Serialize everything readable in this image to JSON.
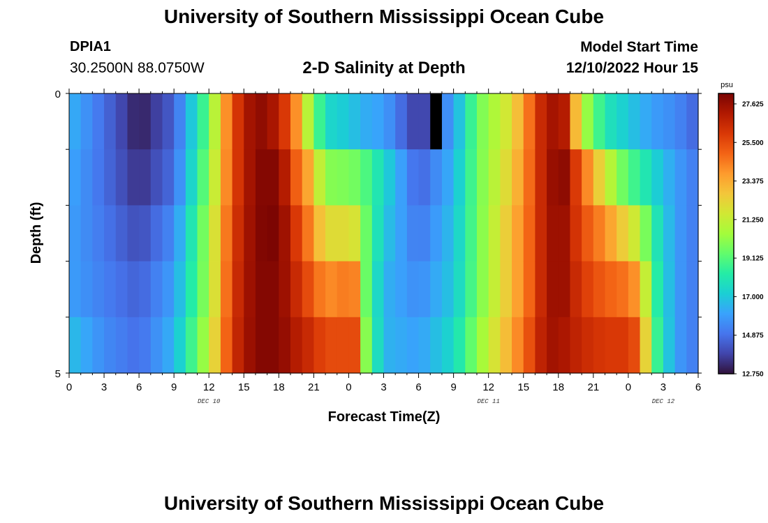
{
  "header": {
    "title": "University of Southern Mississippi Ocean Cube",
    "station_id": "DPIA1",
    "coords": "30.2500N  88.0750W",
    "chart_title": "2-D Salinity at Depth",
    "start_label": "Model Start Time",
    "start_value": "12/10/2022 Hour 15"
  },
  "footer": {
    "title": "University of Southern Mississippi Ocean Cube"
  },
  "colors": {
    "colormap": [
      "#30123b",
      "#4145ab",
      "#4675ed",
      "#39a2fc",
      "#1bcfd4",
      "#24eca6",
      "#61fc6c",
      "#a4fc3b",
      "#d1e834",
      "#f3c63a",
      "#fe9b2d",
      "#f36315",
      "#d93806",
      "#b11901",
      "#7a0402"
    ],
    "missing": "#000000"
  },
  "chart_data": {
    "type": "heatmap",
    "title": "2-D Salinity at Depth",
    "xlabel": "Forecast Time(Z)",
    "ylabel": "Depth (ft)",
    "x_tick_labels": [
      "0",
      "3",
      "6",
      "9",
      "12",
      "15",
      "18",
      "21",
      "0",
      "3",
      "6",
      "9",
      "12",
      "15",
      "18",
      "21",
      "0",
      "3",
      "6"
    ],
    "day_labels": [
      {
        "label": "DEC 10",
        "at_hour": 12
      },
      {
        "label": "DEC 11",
        "at_hour": 36
      },
      {
        "label": "DEC 12",
        "at_hour": 51
      }
    ],
    "xlim": [
      0,
      54
    ],
    "y_tick_labels": [
      "0",
      "5"
    ],
    "ylim": [
      0,
      5
    ],
    "units": "psu",
    "colorbar_ticks": [
      "27.625",
      "25.500",
      "23.375",
      "21.250",
      "19.125",
      "17.000",
      "14.875",
      "12.750"
    ],
    "vmin": 12.75,
    "vmax": 28.2,
    "layer_depths_ft": [
      0,
      1,
      2,
      3,
      4,
      5
    ],
    "keyframes": [
      {
        "hour": 0,
        "values": [
          16.5,
          16.2,
          16.0,
          16.0,
          16.8,
          17.5
        ]
      },
      {
        "hour": 3,
        "values": [
          14.8,
          14.8,
          15.0,
          15.2,
          15.5,
          15.6
        ]
      },
      {
        "hour": 6,
        "values": [
          13.0,
          13.4,
          14.0,
          14.5,
          14.8,
          15.0
        ]
      },
      {
        "hour": 9,
        "values": [
          14.5,
          14.8,
          15.5,
          16.0,
          16.5,
          16.5
        ]
      },
      {
        "hour": 12,
        "values": [
          19.5,
          20.0,
          20.5,
          20.5,
          21.0,
          21.5
        ]
      },
      {
        "hour": 14,
        "values": [
          25.5,
          25.5,
          25.8,
          26.0,
          26.2,
          26.5
        ]
      },
      {
        "hour": 16,
        "values": [
          28.0,
          28.0,
          28.0,
          28.0,
          28.0,
          28.0
        ]
      },
      {
        "hour": 18,
        "values": [
          27.0,
          28.0,
          28.2,
          28.0,
          28.0,
          28.0
        ]
      },
      {
        "hour": 19.5,
        "values": [
          24.0,
          25.0,
          26.0,
          26.5,
          27.0,
          27.2
        ]
      },
      {
        "hour": 20.5,
        "values": [
          21.0,
          23.5,
          24.5,
          25.5,
          26.5,
          27.0
        ]
      },
      {
        "hour": 22,
        "values": [
          17.5,
          20.0,
          22.0,
          24.0,
          25.5,
          26.5
        ]
      },
      {
        "hour": 24,
        "values": [
          17.0,
          19.8,
          22.0,
          24.5,
          25.5,
          26.5
        ]
      },
      {
        "hour": 25,
        "values": [
          16.5,
          19.5,
          21.5,
          24.0,
          25.5,
          26.0
        ]
      },
      {
        "hour": 25.5,
        "values": [
          16.3,
          19.0,
          19.5,
          19.5,
          20.0,
          20.0
        ]
      },
      {
        "hour": 27,
        "values": [
          16.0,
          17.5,
          17.0,
          16.5,
          16.5,
          16.0
        ]
      },
      {
        "hour": 30,
        "values": [
          13.5,
          14.5,
          15.0,
          15.5,
          16.0,
          16.3
        ]
      },
      {
        "hour": 33,
        "values": [
          16.0,
          16.5,
          16.8,
          17.0,
          17.5,
          18.0
        ]
      },
      {
        "hour": 35,
        "values": [
          19.5,
          19.5,
          19.5,
          19.5,
          20.0,
          20.0
        ]
      },
      {
        "hour": 38,
        "values": [
          22.0,
          22.5,
          23.0,
          23.0,
          23.5,
          23.0
        ]
      },
      {
        "hour": 40,
        "values": [
          25.5,
          25.5,
          25.5,
          25.5,
          26.0,
          26.0
        ]
      },
      {
        "hour": 41,
        "values": [
          27.5,
          27.5,
          27.5,
          27.5,
          27.5,
          27.8
        ]
      },
      {
        "hour": 42.5,
        "values": [
          27.0,
          27.8,
          27.5,
          27.5,
          27.2,
          27.2
        ]
      },
      {
        "hour": 44,
        "values": [
          21.0,
          25.0,
          25.5,
          26.0,
          26.5,
          26.5
        ]
      },
      {
        "hour": 46,
        "values": [
          18.0,
          21.5,
          24.0,
          25.0,
          26.0,
          26.5
        ]
      },
      {
        "hour": 48,
        "values": [
          17.0,
          19.0,
          22.0,
          24.5,
          26.0,
          26.5
        ]
      },
      {
        "hour": 49,
        "values": [
          16.5,
          18.5,
          21.0,
          23.5,
          25.0,
          26.0
        ]
      },
      {
        "hour": 50,
        "values": [
          16.0,
          17.5,
          18.5,
          19.0,
          19.5,
          20.0
        ]
      },
      {
        "hour": 52,
        "values": [
          15.5,
          16.0,
          16.0,
          16.0,
          16.0,
          16.0
        ]
      },
      {
        "hour": 54,
        "values": [
          14.5,
          15.0,
          15.0,
          15.0,
          15.0,
          15.0
        ]
      }
    ],
    "missing_cells": [
      {
        "hour": 31,
        "layer": 0
      }
    ]
  }
}
